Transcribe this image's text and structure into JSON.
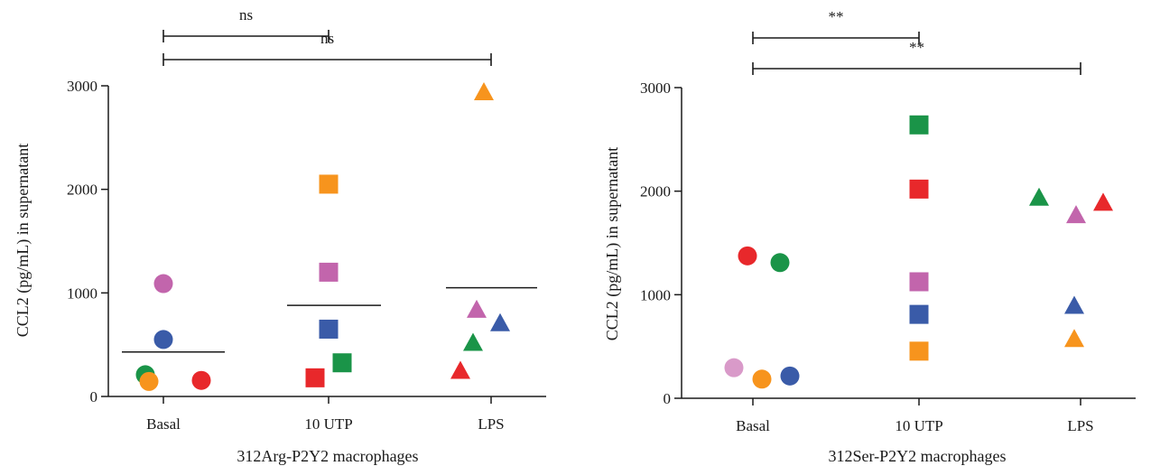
{
  "chart_data": [
    {
      "type": "scatter",
      "categories": [
        "Basal",
        "10 UTP",
        "LPS"
      ],
      "xlabel": "312Arg-P2Y2 macrophages",
      "ylabel": "CCL2 (pg/mL) in supernatant",
      "ylim": [
        0,
        3000
      ],
      "yticks": [
        0,
        1000,
        2000,
        3000
      ],
      "grid": false,
      "means": [
        430,
        880,
        1050
      ],
      "significance": [
        {
          "from": "Basal",
          "to": "10 UTP",
          "label": "ns"
        },
        {
          "from": "Basal",
          "to": "LPS",
          "label": "ns"
        }
      ],
      "points": [
        {
          "category": "Basal",
          "marker": "circle",
          "color": "#c265ac",
          "value": 1090
        },
        {
          "category": "Basal",
          "marker": "circle",
          "color": "#3a5ba8",
          "value": 550
        },
        {
          "category": "Basal",
          "marker": "circle",
          "color": "#1a9448",
          "value": 210
        },
        {
          "category": "Basal",
          "marker": "circle",
          "color": "#f7941d",
          "value": 145
        },
        {
          "category": "Basal",
          "marker": "circle",
          "color": "#e8282b",
          "value": 155
        },
        {
          "category": "10 UTP",
          "marker": "square",
          "color": "#f7941d",
          "value": 2050
        },
        {
          "category": "10 UTP",
          "marker": "square",
          "color": "#c265ac",
          "value": 1200
        },
        {
          "category": "10 UTP",
          "marker": "square",
          "color": "#3a5ba8",
          "value": 650
        },
        {
          "category": "10 UTP",
          "marker": "square",
          "color": "#1a9448",
          "value": 325
        },
        {
          "category": "10 UTP",
          "marker": "square",
          "color": "#e8282b",
          "value": 180
        },
        {
          "category": "LPS",
          "marker": "triangle",
          "color": "#f7941d",
          "value": 2930
        },
        {
          "category": "LPS",
          "marker": "triangle",
          "color": "#c265ac",
          "value": 830
        },
        {
          "category": "LPS",
          "marker": "triangle",
          "color": "#3a5ba8",
          "value": 700
        },
        {
          "category": "LPS",
          "marker": "triangle",
          "color": "#1a9448",
          "value": 510
        },
        {
          "category": "LPS",
          "marker": "triangle",
          "color": "#e8282b",
          "value": 240
        }
      ]
    },
    {
      "type": "scatter",
      "categories": [
        "Basal",
        "10 UTP",
        "LPS"
      ],
      "xlabel": "312Ser-P2Y2 macrophages",
      "ylabel": "CCL2 (pg/mL) in supernatant",
      "ylim": [
        0,
        3000
      ],
      "yticks": [
        0,
        1000,
        2000,
        3000
      ],
      "grid": false,
      "means": [],
      "significance": [
        {
          "from": "Basal",
          "to": "10 UTP",
          "label": "**"
        },
        {
          "from": "Basal",
          "to": "LPS",
          "label": "**"
        }
      ],
      "points": [
        {
          "category": "Basal",
          "marker": "circle",
          "color": "#e8282b",
          "value": 1375
        },
        {
          "category": "Basal",
          "marker": "circle",
          "color": "#1a9448",
          "value": 1310
        },
        {
          "category": "Basal",
          "marker": "circle",
          "color": "#d99ac9",
          "value": 295
        },
        {
          "category": "Basal",
          "marker": "circle",
          "color": "#f7941d",
          "value": 185
        },
        {
          "category": "Basal",
          "marker": "circle",
          "color": "#3a5ba8",
          "value": 215
        },
        {
          "category": "10 UTP",
          "marker": "square",
          "color": "#1a9448",
          "value": 2640
        },
        {
          "category": "10 UTP",
          "marker": "square",
          "color": "#e8282b",
          "value": 2020
        },
        {
          "category": "10 UTP",
          "marker": "square",
          "color": "#c265ac",
          "value": 1125
        },
        {
          "category": "10 UTP",
          "marker": "square",
          "color": "#3a5ba8",
          "value": 810
        },
        {
          "category": "10 UTP",
          "marker": "square",
          "color": "#f7941d",
          "value": 455
        },
        {
          "category": "LPS",
          "marker": "triangle",
          "color": "#1a9448",
          "value": 1930
        },
        {
          "category": "LPS",
          "marker": "triangle",
          "color": "#e8282b",
          "value": 1880
        },
        {
          "category": "LPS",
          "marker": "triangle",
          "color": "#c265ac",
          "value": 1760
        },
        {
          "category": "LPS",
          "marker": "triangle",
          "color": "#3a5ba8",
          "value": 885
        },
        {
          "category": "LPS",
          "marker": "triangle",
          "color": "#f7941d",
          "value": 565
        }
      ]
    }
  ]
}
